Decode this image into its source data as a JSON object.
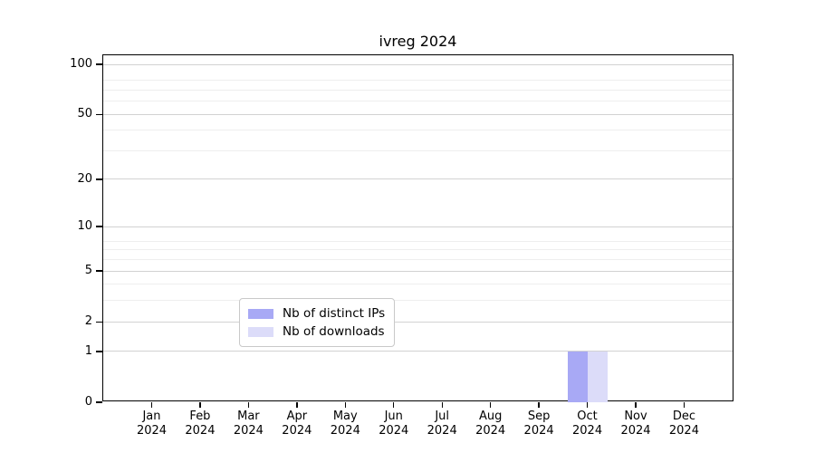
{
  "chart_data": {
    "type": "bar",
    "title": "ivreg 2024",
    "x": {
      "months": [
        "Jan",
        "Feb",
        "Mar",
        "Apr",
        "May",
        "Jun",
        "Jul",
        "Aug",
        "Sep",
        "Oct",
        "Nov",
        "Dec"
      ],
      "year": "2024"
    },
    "y_axis": {
      "scale": "log1p",
      "major_ticks": [
        100,
        50,
        20,
        10,
        5,
        2,
        1,
        0
      ],
      "minor_gridlines": [
        80,
        70,
        60,
        40,
        30,
        8,
        7,
        6,
        4,
        3
      ],
      "ylim": [
        0,
        115
      ],
      "grid": "on"
    },
    "series": [
      {
        "name": "Nb of distinct IPs",
        "color": "#a8a9f5",
        "values": [
          0,
          0,
          0,
          0,
          0,
          0,
          0,
          0,
          0,
          1,
          0,
          0
        ]
      },
      {
        "name": "Nb of downloads",
        "color": "#dcdcf9",
        "values": [
          0,
          0,
          0,
          0,
          0,
          0,
          0,
          0,
          0,
          1,
          0,
          0
        ]
      }
    ],
    "legend": {
      "position": "bottom-center",
      "entries": [
        "Nb of distinct IPs",
        "Nb of downloads"
      ]
    }
  }
}
